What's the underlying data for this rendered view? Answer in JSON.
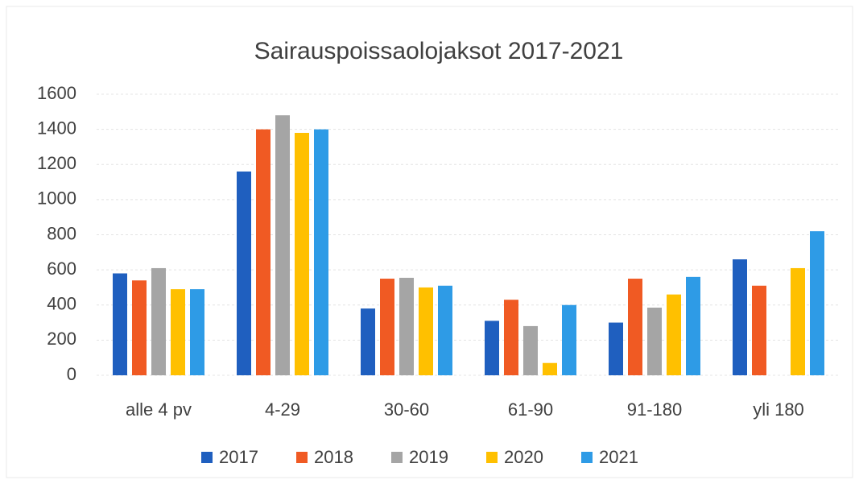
{
  "chart_data": {
    "type": "bar",
    "title": "Sairauspoissaolojaksot 2017-2021",
    "categories": [
      "alle 4 pv",
      "4-29",
      "30-60",
      "61-90",
      "91-180",
      "yli 180"
    ],
    "series": [
      {
        "name": "2017",
        "color": "#1f5fbf",
        "values": [
          580,
          1160,
          380,
          310,
          300,
          660
        ]
      },
      {
        "name": "2018",
        "color": "#f05a23",
        "values": [
          540,
          1400,
          550,
          430,
          550,
          510
        ]
      },
      {
        "name": "2019",
        "color": "#a5a5a5",
        "values": [
          610,
          1480,
          555,
          280,
          385,
          null
        ]
      },
      {
        "name": "2020",
        "color": "#ffc000",
        "values": [
          490,
          1380,
          500,
          70,
          460,
          610
        ]
      },
      {
        "name": "2021",
        "color": "#2e9be6",
        "values": [
          490,
          1400,
          510,
          400,
          560,
          820
        ]
      }
    ],
    "ylim": [
      0,
      1600
    ],
    "yticks": [
      0,
      200,
      400,
      600,
      800,
      1000,
      1200,
      1400,
      1600
    ],
    "grid": true
  }
}
